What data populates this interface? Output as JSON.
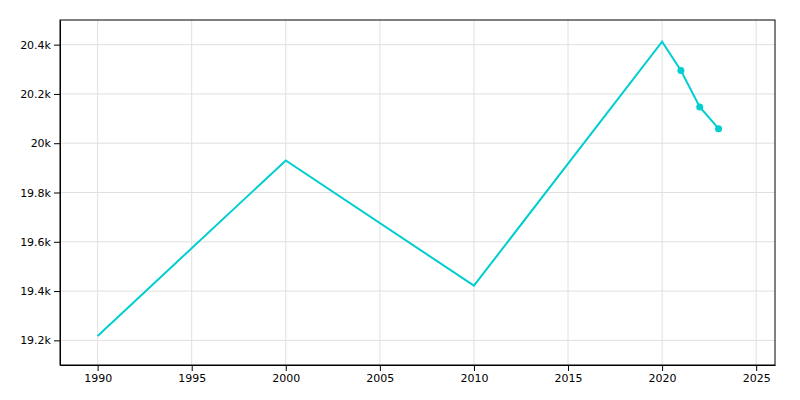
{
  "chart_data": {
    "type": "line",
    "x": [
      1990,
      2000,
      2010,
      2020,
      2021,
      2022,
      2023
    ],
    "series": [
      {
        "color": "#00CED1",
        "values": [
          19218,
          19930,
          19422,
          20412,
          20295,
          20147,
          20059
        ]
      },
      {
        "type": "scatter",
        "marker": "circle",
        "color": "#00CED1",
        "x": [
          2021,
          2022,
          2023
        ],
        "values": [
          20295,
          20147,
          20059
        ]
      }
    ],
    "xlim": [
      1988,
      2026
    ],
    "ylim": [
      19100,
      20500
    ],
    "xticks": [
      1990,
      1995,
      2000,
      2005,
      2010,
      2015,
      2020,
      2025
    ],
    "yticks": [
      {
        "value": 19200,
        "label": "19.2k"
      },
      {
        "value": 19400,
        "label": "19.4k"
      },
      {
        "value": 19600,
        "label": "19.6k"
      },
      {
        "value": 19800,
        "label": "19.8k"
      },
      {
        "value": 20000,
        "label": "20k"
      },
      {
        "value": 20200,
        "label": "20.2k"
      },
      {
        "value": 20400,
        "label": "20.4k"
      }
    ],
    "grid": true
  }
}
